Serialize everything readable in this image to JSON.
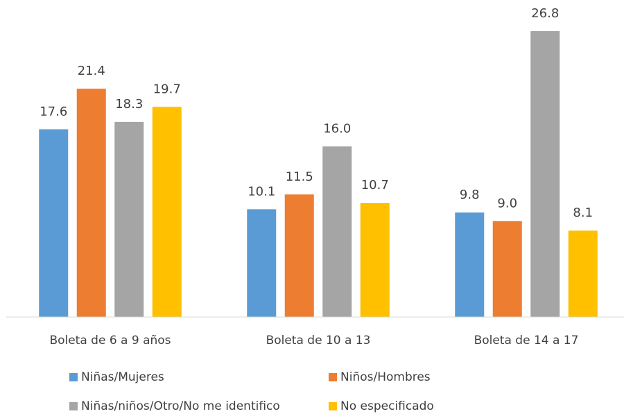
{
  "chart_data": {
    "type": "bar",
    "categories": [
      "Boleta de 6 a 9 años",
      "Boleta de 10 a 13",
      "Boleta de 14 a 17"
    ],
    "series": [
      {
        "name": "Niñas/Mujeres",
        "color": "#5b9bd5",
        "values": [
          17.6,
          10.1,
          9.8
        ],
        "value_labels": [
          "17.6",
          "10.1",
          "9.8"
        ]
      },
      {
        "name": "Niños/Hombres",
        "color": "#ed7d31",
        "values": [
          21.4,
          11.5,
          9.0
        ],
        "value_labels": [
          "21.4",
          "11.5",
          "9.0"
        ]
      },
      {
        "name": "Niñas/niños/Otro/No me identifico",
        "color": "#a5a5a5",
        "values": [
          18.3,
          16.0,
          26.8
        ],
        "value_labels": [
          "18.3",
          "16.0",
          "26.8"
        ]
      },
      {
        "name": "No especificado",
        "color": "#ffc000",
        "values": [
          19.7,
          10.7,
          8.1
        ],
        "value_labels": [
          "19.7",
          "10.7",
          "8.1"
        ]
      }
    ]
  }
}
